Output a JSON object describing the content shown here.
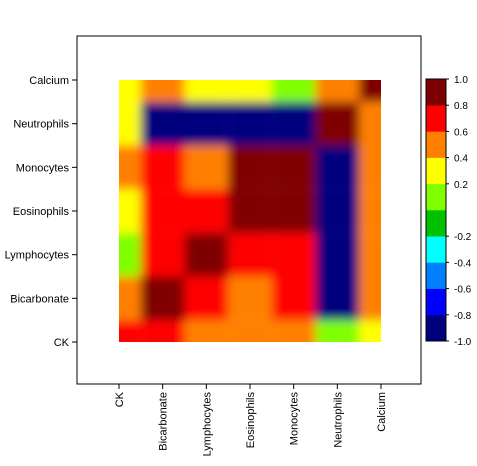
{
  "chart_data": {
    "type": "heatmap",
    "title": "",
    "xlabel": "",
    "ylabel": "",
    "x_labels": [
      "CK",
      "Bicarbonate",
      "Lymphocytes",
      "Eosinophils",
      "Monocytes",
      "Neutrophils",
      "Calcium"
    ],
    "y_labels": [
      "CK",
      "Bicarbonate",
      "Lymphocytes",
      "Eosinophils",
      "Monocytes",
      "Neutrophils",
      "Calcium"
    ],
    "values": [
      [
        0.6,
        0.6,
        0.5,
        0.4,
        0.4,
        0.0,
        0.3
      ],
      [
        0.5,
        0.8,
        0.6,
        0.5,
        0.6,
        -0.9,
        0.4
      ],
      [
        0.0,
        0.6,
        0.9,
        0.7,
        0.6,
        -0.9,
        0.4
      ],
      [
        0.3,
        0.7,
        0.6,
        0.9,
        0.9,
        -0.9,
        0.4
      ],
      [
        0.4,
        0.6,
        0.5,
        0.8,
        0.8,
        -0.9,
        0.4
      ],
      [
        0.3,
        -0.8,
        -0.9,
        -0.9,
        -0.9,
        0.9,
        0.5
      ],
      [
        0.3,
        0.5,
        0.2,
        0.2,
        0.1,
        0.4,
        0.8
      ]
    ],
    "colorbar": {
      "range": [
        -1.0,
        1.0
      ],
      "ticks": [
        "1.0",
        "0.8",
        "0.6",
        "0.4",
        "0.2",
        "-0.2",
        "-0.4",
        "-0.6",
        "-0.8",
        "-1.0"
      ],
      "colors": [
        "#00007f",
        "#0000ff",
        "#0080ff",
        "#00ffff",
        "#00c000",
        "#80ff00",
        "#ffff00",
        "#ff8000",
        "#ff0000",
        "#7f0000"
      ]
    },
    "legend_position": "right",
    "grid": false
  }
}
